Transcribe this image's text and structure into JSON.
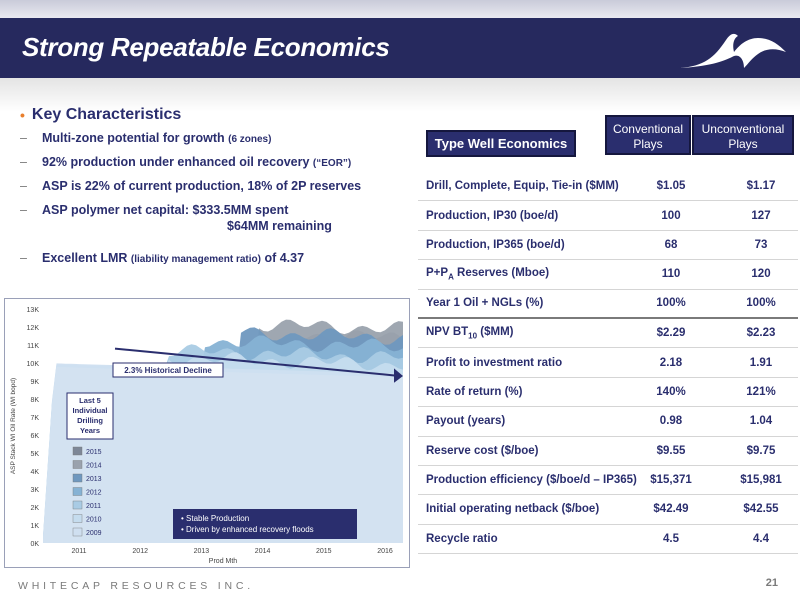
{
  "header": {
    "title": "Strong Repeatable Economics"
  },
  "bullets": {
    "main": "Key Characteristics",
    "items": [
      {
        "text": "Multi-zone potential for growth",
        "small": "(6 zones)",
        "tail": ""
      },
      {
        "text": "92% production under enhanced oil recovery",
        "small": "(“EOR”)",
        "tail": ""
      },
      {
        "text": "ASP is 22% of current production, 18% of 2P reserves",
        "small": "",
        "tail": ""
      },
      {
        "text": "ASP polymer net capital:  $333.5MM spent",
        "small": "",
        "tail": ""
      },
      {
        "text": "Excellent LMR",
        "small": "(liability management ratio)",
        "tail": "of 4.37"
      }
    ],
    "continuation": "$64MM remaining"
  },
  "chart_data": {
    "type": "area",
    "ylabel": "ASP Stack WI Oil Rate (WI bopd)",
    "xlabel": "Prod Mth",
    "x_ticks": [
      "2011",
      "2012",
      "2013",
      "2014",
      "2015",
      "2016"
    ],
    "y_ticks": [
      "0K",
      "1K",
      "2K",
      "3K",
      "4K",
      "5K",
      "6K",
      "7K",
      "8K",
      "9K",
      "10K",
      "11K",
      "12K",
      "13K"
    ],
    "ylim": [
      0,
      13000
    ],
    "annotation": "2.3% Historical Decline",
    "legend_title": "Last 5 Individual Drilling Years",
    "legend_title_lines": [
      "Last 5",
      "Individual",
      "Drilling",
      "Years"
    ],
    "legend": [
      {
        "label": "2015",
        "color": "#7d8797"
      },
      {
        "label": "2014",
        "color": "#9aa2ad"
      },
      {
        "label": "2013",
        "color": "#6f98bf"
      },
      {
        "label": "2012",
        "color": "#86b2d4"
      },
      {
        "label": "2011",
        "color": "#a9cbe4"
      },
      {
        "label": "2010",
        "color": "#c5dcee"
      },
      {
        "label": "2009",
        "color": "#cfdff0"
      }
    ],
    "callout": [
      "Stable Production",
      "Driven by enhanced recovery floods"
    ]
  },
  "table": {
    "tag": "Type Well Economics",
    "col1": [
      "Conventional",
      "Plays"
    ],
    "col2": [
      "Unconventional",
      "Plays"
    ],
    "rows": [
      {
        "label": "Drill, Complete, Equip, Tie-in ($MM)",
        "v1": "$1.05",
        "v2": "$1.17"
      },
      {
        "label": "Production, IP30 (boe/d)",
        "v1": "100",
        "v2": "127"
      },
      {
        "label": "Production, IP365 (boe/d)",
        "v1": "68",
        "v2": "73"
      },
      {
        "label": "P+P",
        "sub": "A",
        "label_tail": " Reserves (Mboe)",
        "v1": "110",
        "v2": "120"
      },
      {
        "label": "Year 1 Oil + NGLs (%)",
        "v1": "100%",
        "v2": "100%"
      },
      {
        "label": "NPV BT",
        "sub": "10",
        "label_tail": " ($MM)",
        "v1": "$2.29",
        "v2": "$2.23"
      },
      {
        "label": "Profit to investment ratio",
        "v1": "2.18",
        "v2": "1.91"
      },
      {
        "label": "Rate of return (%)",
        "v1": "140%",
        "v2": "121%"
      },
      {
        "label": "Payout (years)",
        "v1": "0.98",
        "v2": "1.04"
      },
      {
        "label": "Reserve cost ($/boe)",
        "v1": "$9.55",
        "v2": "$9.75"
      },
      {
        "label": "Production efficiency ($/boe/d – IP365)",
        "v1": "$15,371",
        "v2": "$15,981"
      },
      {
        "label": "Initial operating netback ($/boe)",
        "v1": "$42.49",
        "v2": "$42.55"
      },
      {
        "label": "Recycle ratio",
        "v1": "4.5",
        "v2": "4.4"
      }
    ]
  },
  "footer": {
    "company": "WHITECAP RESOURCES INC.",
    "page": "21"
  }
}
